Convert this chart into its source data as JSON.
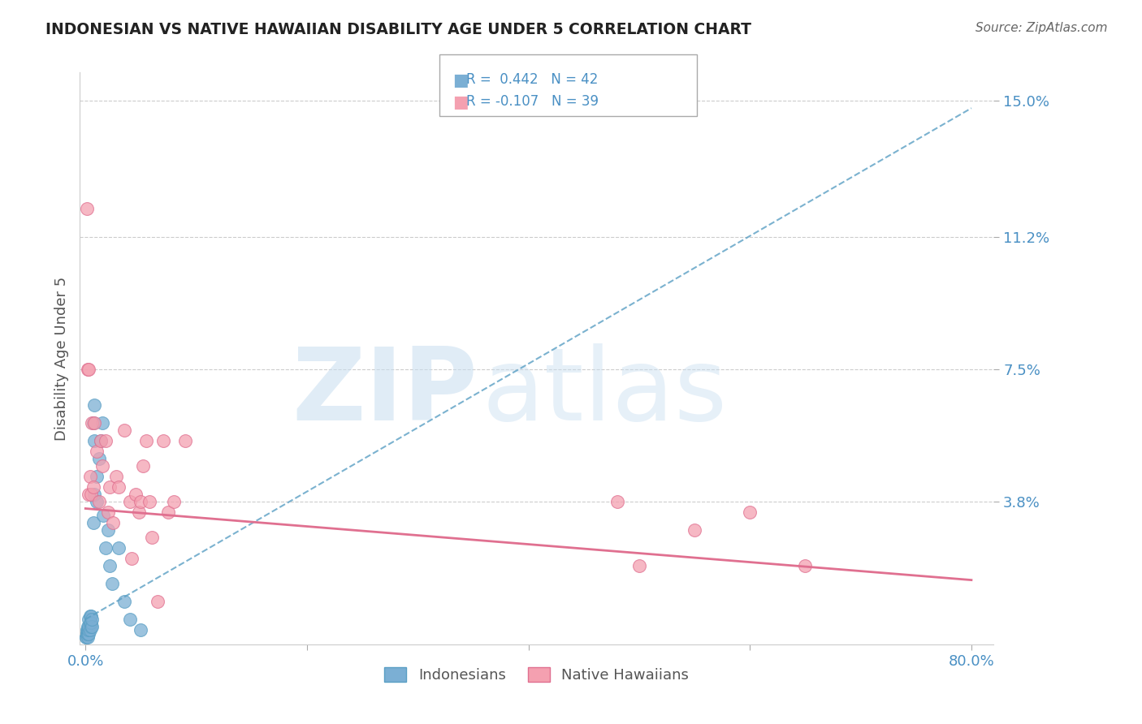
{
  "title": "INDONESIAN VS NATIVE HAWAIIAN DISABILITY AGE UNDER 5 CORRELATION CHART",
  "source": "Source: ZipAtlas.com",
  "ylabel": "Disability Age Under 5",
  "xlim": [
    -0.005,
    0.82
  ],
  "ylim": [
    -0.002,
    0.158
  ],
  "yticks": [
    0.038,
    0.075,
    0.112,
    0.15
  ],
  "ytick_labels": [
    "3.8%",
    "7.5%",
    "11.2%",
    "15.0%"
  ],
  "legend_blue_label": "Indonesians",
  "legend_pink_label": "Native Hawaiians",
  "R_blue": 0.442,
  "N_blue": 42,
  "R_pink": -0.107,
  "N_pink": 39,
  "blue_color": "#7bafd4",
  "pink_color": "#f4a0b0",
  "blue_line_color": "#5a9fc4",
  "pink_line_color": "#e07090",
  "watermark_zip": "ZIP",
  "watermark_atlas": "atlas",
  "background_color": "#ffffff",
  "blue_trend_x": [
    0.0,
    0.8
  ],
  "blue_trend_y": [
    0.005,
    0.148
  ],
  "pink_trend_x": [
    0.0,
    0.8
  ],
  "pink_trend_y": [
    0.036,
    0.016
  ],
  "indonesian_x": [
    0.0005,
    0.0008,
    0.001,
    0.001,
    0.001,
    0.0015,
    0.002,
    0.002,
    0.002,
    0.002,
    0.002,
    0.003,
    0.003,
    0.003,
    0.003,
    0.004,
    0.004,
    0.004,
    0.005,
    0.005,
    0.005,
    0.006,
    0.006,
    0.007,
    0.007,
    0.008,
    0.008,
    0.008,
    0.01,
    0.01,
    0.012,
    0.014,
    0.015,
    0.016,
    0.018,
    0.02,
    0.022,
    0.024,
    0.03,
    0.035,
    0.04,
    0.05
  ],
  "indonesian_y": [
    0.0,
    0.0,
    0.001,
    0.001,
    0.002,
    0.001,
    0.0,
    0.001,
    0.002,
    0.002,
    0.003,
    0.001,
    0.002,
    0.003,
    0.005,
    0.002,
    0.004,
    0.006,
    0.003,
    0.004,
    0.006,
    0.003,
    0.005,
    0.032,
    0.06,
    0.04,
    0.055,
    0.065,
    0.038,
    0.045,
    0.05,
    0.055,
    0.06,
    0.034,
    0.025,
    0.03,
    0.02,
    0.015,
    0.025,
    0.01,
    0.005,
    0.002
  ],
  "native_hawaiian_x": [
    0.001,
    0.002,
    0.003,
    0.003,
    0.004,
    0.005,
    0.006,
    0.007,
    0.008,
    0.01,
    0.012,
    0.014,
    0.015,
    0.018,
    0.02,
    0.022,
    0.025,
    0.028,
    0.03,
    0.035,
    0.04,
    0.042,
    0.045,
    0.048,
    0.05,
    0.052,
    0.055,
    0.058,
    0.06,
    0.065,
    0.07,
    0.075,
    0.08,
    0.09,
    0.48,
    0.5,
    0.55,
    0.6,
    0.65
  ],
  "native_hawaiian_y": [
    0.12,
    0.075,
    0.04,
    0.075,
    0.045,
    0.04,
    0.06,
    0.042,
    0.06,
    0.052,
    0.038,
    0.055,
    0.048,
    0.055,
    0.035,
    0.042,
    0.032,
    0.045,
    0.042,
    0.058,
    0.038,
    0.022,
    0.04,
    0.035,
    0.038,
    0.048,
    0.055,
    0.038,
    0.028,
    0.01,
    0.055,
    0.035,
    0.038,
    0.055,
    0.038,
    0.02,
    0.03,
    0.035,
    0.02
  ]
}
